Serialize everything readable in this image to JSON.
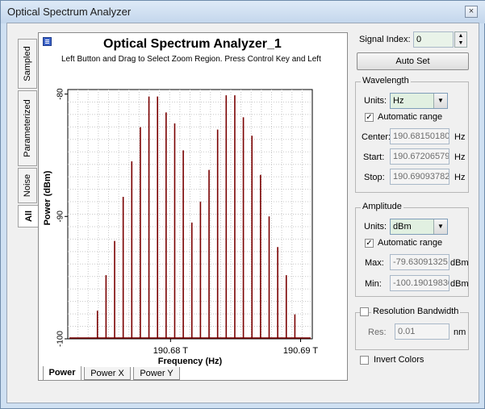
{
  "window": {
    "title": "Optical Spectrum Analyzer",
    "close": "×"
  },
  "side_tabs": [
    {
      "label": "Sampled"
    },
    {
      "label": "Parameterized"
    },
    {
      "label": "Noise"
    },
    {
      "label": "All"
    }
  ],
  "bottom_tabs": [
    {
      "label": "Power"
    },
    {
      "label": "Power X"
    },
    {
      "label": "Power Y"
    }
  ],
  "right": {
    "signal_index_label": "Signal Index:",
    "signal_index_value": "0",
    "auto_set": "Auto Set",
    "wavelength": {
      "title": "Wavelength",
      "units_label": "Units:",
      "units_value": "Hz",
      "auto_range": "Automatic range",
      "center_label": "Center:",
      "center_value": "190.68150180",
      "center_unit": "Hz",
      "start_label": "Start:",
      "start_value": "190.67206579",
      "start_unit": "Hz",
      "stop_label": "Stop:",
      "stop_value": "190.69093782",
      "stop_unit": "Hz"
    },
    "amplitude": {
      "title": "Amplitude",
      "units_label": "Units:",
      "units_value": "dBm",
      "auto_range": "Automatic range",
      "max_label": "Max:",
      "max_value": "-79.63091325",
      "max_unit": "dBm",
      "min_label": "Min:",
      "min_value": "-100.19019830",
      "min_unit": "dBm"
    },
    "resolution": {
      "title": "Resolution Bandwidth",
      "res_label": "Res:",
      "res_value": "0.01",
      "res_unit": "nm"
    },
    "invert_colors": "Invert Colors"
  },
  "chart_data": {
    "type": "bar",
    "title": "Optical Spectrum Analyzer_1",
    "subtitle": "Left Button and Drag to Select Zoom Region. Press Control Key and Left",
    "xlabel": "Frequency (Hz)",
    "ylabel": "Power (dBm)",
    "xlim": [
      190.6721,
      190.6909
    ],
    "ylim": [
      -100,
      -79.63
    ],
    "xticks": [
      {
        "value": 190.68,
        "label": "190.68 T"
      },
      {
        "value": 190.69,
        "label": "190.69 T"
      }
    ],
    "yticks": [
      {
        "value": -80,
        "label": "-80"
      },
      {
        "value": -90,
        "label": "-90"
      },
      {
        "value": -100,
        "label": "-100"
      }
    ],
    "grid": true,
    "color": "#7a0000",
    "x": [
      190.67438,
      190.67504,
      190.6757,
      190.67636,
      190.67702,
      190.67768,
      190.67834,
      190.679,
      190.67966,
      190.68032,
      190.68098,
      190.68164,
      190.6823,
      190.68296,
      190.68362,
      190.68428,
      190.68494,
      190.6856,
      190.68626,
      190.68692,
      190.68758,
      190.68824,
      190.6889,
      190.68956
    ],
    "values": [
      -97.7,
      -94.8,
      -92.0,
      -88.4,
      -85.5,
      -82.7,
      -80.2,
      -80.2,
      -81.5,
      -82.4,
      -84.6,
      -90.5,
      -88.8,
      -86.2,
      -82.9,
      -80.1,
      -80.1,
      -81.9,
      -83.4,
      -86.6,
      -90.0,
      -92.5,
      -94.8,
      -98.0
    ]
  }
}
